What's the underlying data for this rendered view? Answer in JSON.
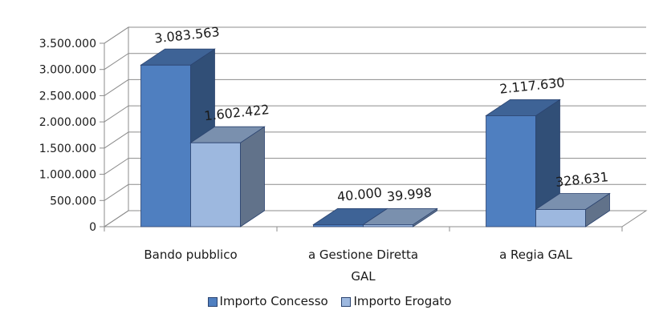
{
  "chart_data": {
    "type": "bar",
    "title": "",
    "xlabel": "",
    "ylabel": "",
    "categories": [
      [
        "Bando pubblico"
      ],
      [
        "a Gestione Diretta",
        "GAL"
      ],
      [
        "a Regia GAL"
      ]
    ],
    "series": [
      {
        "name": "Importo Concesso",
        "values": [
          3083563,
          40000,
          2117630
        ],
        "labels": [
          "3.083.563",
          "40.000",
          "2.117.630"
        ],
        "color": "#4f7fc0"
      },
      {
        "name": "Importo Erogato",
        "values": [
          1602422,
          39998,
          328631
        ],
        "labels": [
          "1.602.422",
          "39.998",
          "328.631"
        ],
        "color": "#9db8df"
      }
    ],
    "ylim": [
      0,
      3500000
    ],
    "yticks": [
      0,
      500000,
      1000000,
      1500000,
      2000000,
      2500000,
      3000000,
      3500000
    ],
    "ytick_labels": [
      "0",
      "500.000",
      "1.000.000",
      "1.500.000",
      "2.000.000",
      "2.500.000",
      "3.000.000",
      "3.500.000"
    ],
    "grid": true,
    "legend_position": "bottom",
    "style": "3d-clustered-column"
  }
}
